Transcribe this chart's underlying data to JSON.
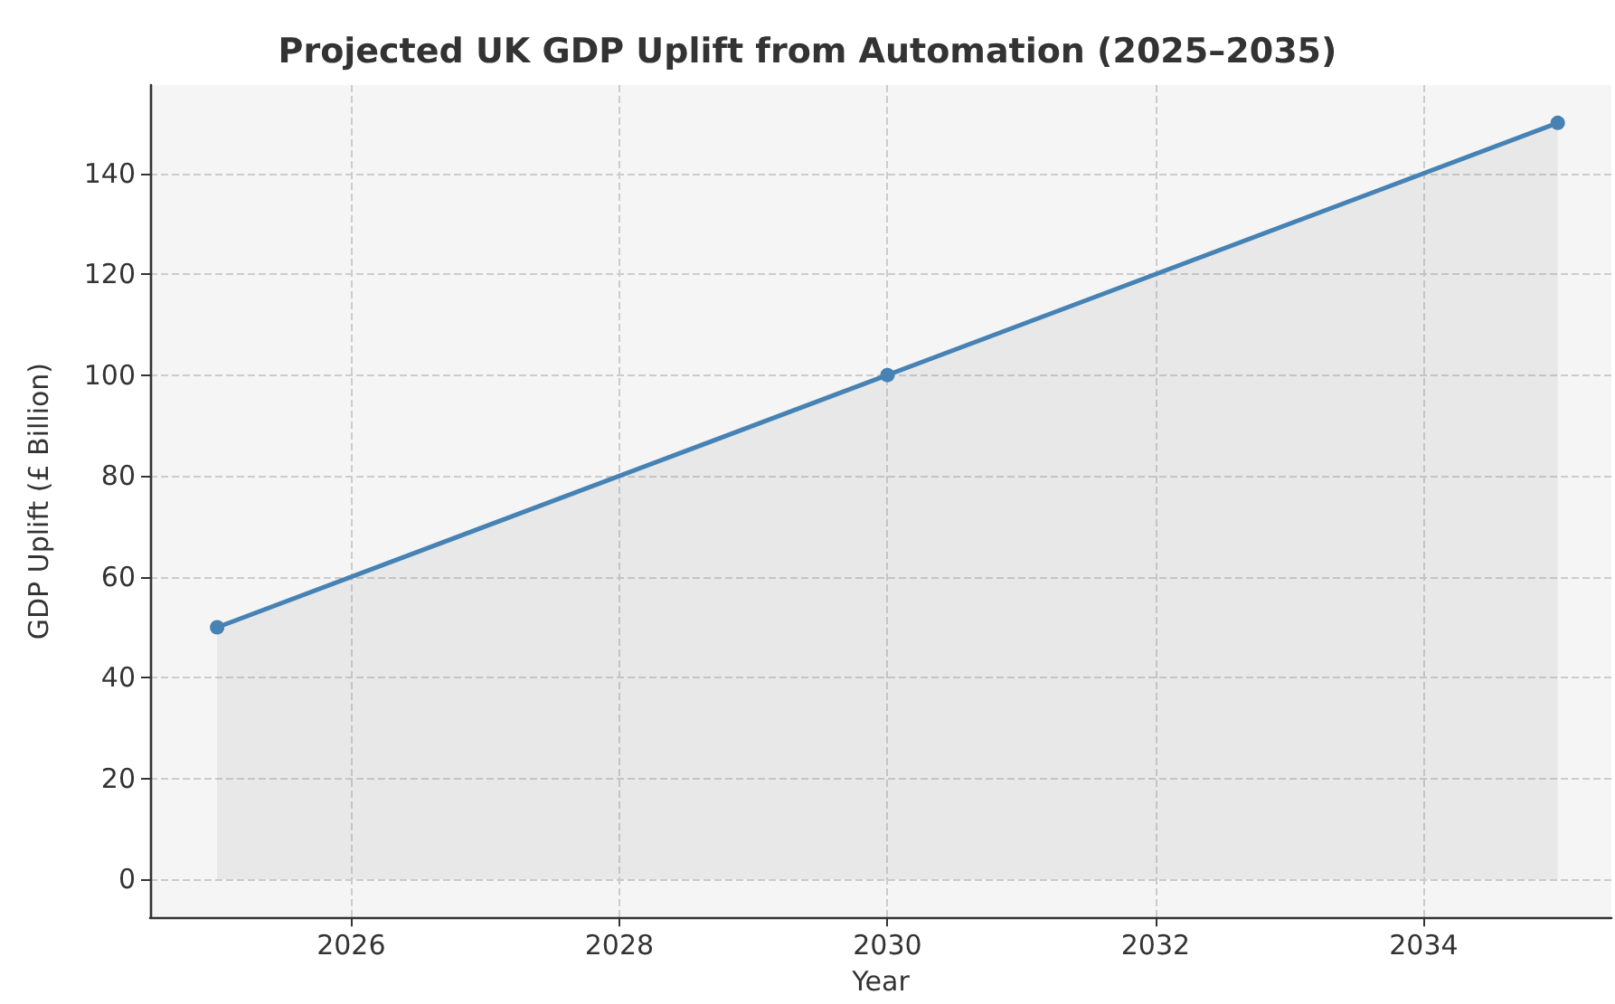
{
  "chart_data": {
    "type": "area",
    "title": "Projected UK GDP Uplift from Automation (2025–2035)",
    "xlabel": "Year",
    "ylabel": "GDP Uplift (£ Billion)",
    "x": [
      2025,
      2030,
      2035
    ],
    "series": [
      {
        "color": "#4682b4",
        "values": [
          50,
          100,
          150
        ]
      }
    ],
    "xlim": [
      2024.5,
      2035.4
    ],
    "xticks": [
      2026,
      2028,
      2030,
      2032,
      2034
    ],
    "ylim": [
      -7.5,
      157.5
    ],
    "yticks": [
      0,
      20,
      40,
      60,
      80,
      100,
      120,
      140
    ],
    "grid": true,
    "marker": "circle",
    "line_style": "solid"
  }
}
